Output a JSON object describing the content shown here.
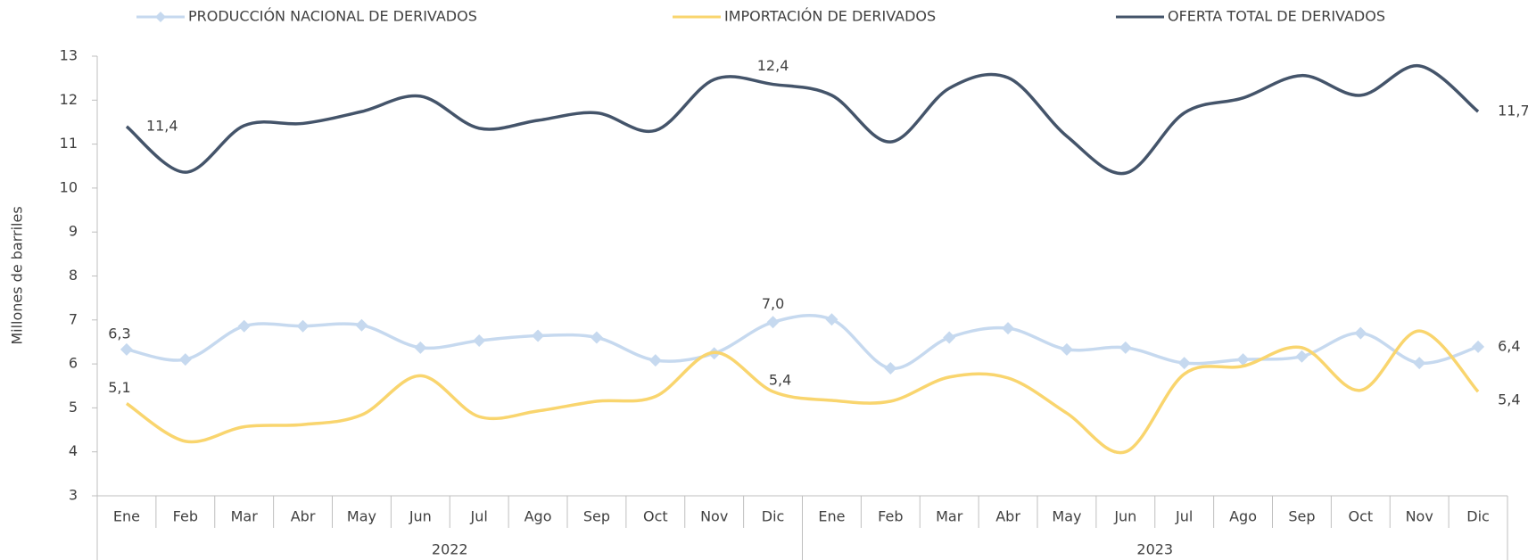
{
  "chart_data": {
    "type": "line",
    "y_label": "Millones de barriles",
    "categories": [
      "Ene",
      "Feb",
      "Mar",
      "Abr",
      "May",
      "Jun",
      "Jul",
      "Ago",
      "Sep",
      "Oct",
      "Nov",
      "Dic",
      "Ene",
      "Feb",
      "Mar",
      "Abr",
      "May",
      "Jun",
      "Jul",
      "Ago",
      "Sep",
      "Oct",
      "Nov",
      "Dic"
    ],
    "groups": [
      "2022",
      "2023"
    ],
    "ylim": [
      3,
      13
    ],
    "yticks": [
      3,
      4,
      5,
      6,
      7,
      8,
      9,
      10,
      11,
      12,
      13
    ],
    "legend": "top",
    "series": [
      {
        "name": "PRODUCCIÓN NACIONAL DE DERIVADOS",
        "color": "#c6d9ef",
        "marker": "diamond",
        "values": [
          6.33,
          6.1,
          6.86,
          6.86,
          6.88,
          6.37,
          6.53,
          6.64,
          6.6,
          6.08,
          6.24,
          6.95,
          7.01,
          5.9,
          6.6,
          6.81,
          6.33,
          6.37,
          6.02,
          6.1,
          6.17,
          6.7,
          6.02,
          6.39
        ],
        "value_labels": [
          "6,3",
          null,
          null,
          null,
          null,
          null,
          null,
          null,
          null,
          null,
          null,
          "7,0",
          null,
          null,
          null,
          null,
          null,
          null,
          null,
          null,
          null,
          null,
          null,
          "6,4"
        ]
      },
      {
        "name": "IMPORTACIÓN DE DERIVADOS",
        "color": "#f9d56e",
        "values": [
          5.1,
          4.24,
          4.57,
          4.62,
          4.84,
          5.73,
          4.8,
          4.93,
          5.15,
          5.26,
          6.26,
          5.37,
          5.17,
          5.15,
          5.7,
          5.68,
          4.88,
          4.0,
          5.77,
          5.95,
          6.37,
          5.4,
          6.75,
          5.37
        ],
        "value_labels": [
          "5,1",
          null,
          null,
          null,
          null,
          null,
          null,
          null,
          null,
          null,
          null,
          "5,4",
          null,
          null,
          null,
          null,
          null,
          null,
          null,
          null,
          null,
          null,
          null,
          "5,4"
        ]
      },
      {
        "name": "OFERTA TOTAL DE DERIVADOS",
        "color": "#44546a",
        "values": [
          11.4,
          10.36,
          11.42,
          11.47,
          11.74,
          12.09,
          11.36,
          11.54,
          11.71,
          11.31,
          12.47,
          12.36,
          12.11,
          11.05,
          12.27,
          12.51,
          11.18,
          10.34,
          11.71,
          12.05,
          12.56,
          12.11,
          12.78,
          11.74
        ],
        "value_labels": [
          "11,4",
          null,
          null,
          null,
          null,
          null,
          null,
          null,
          null,
          null,
          null,
          "12,4",
          null,
          null,
          null,
          null,
          null,
          null,
          null,
          null,
          null,
          null,
          null,
          "11,7"
        ]
      }
    ]
  }
}
